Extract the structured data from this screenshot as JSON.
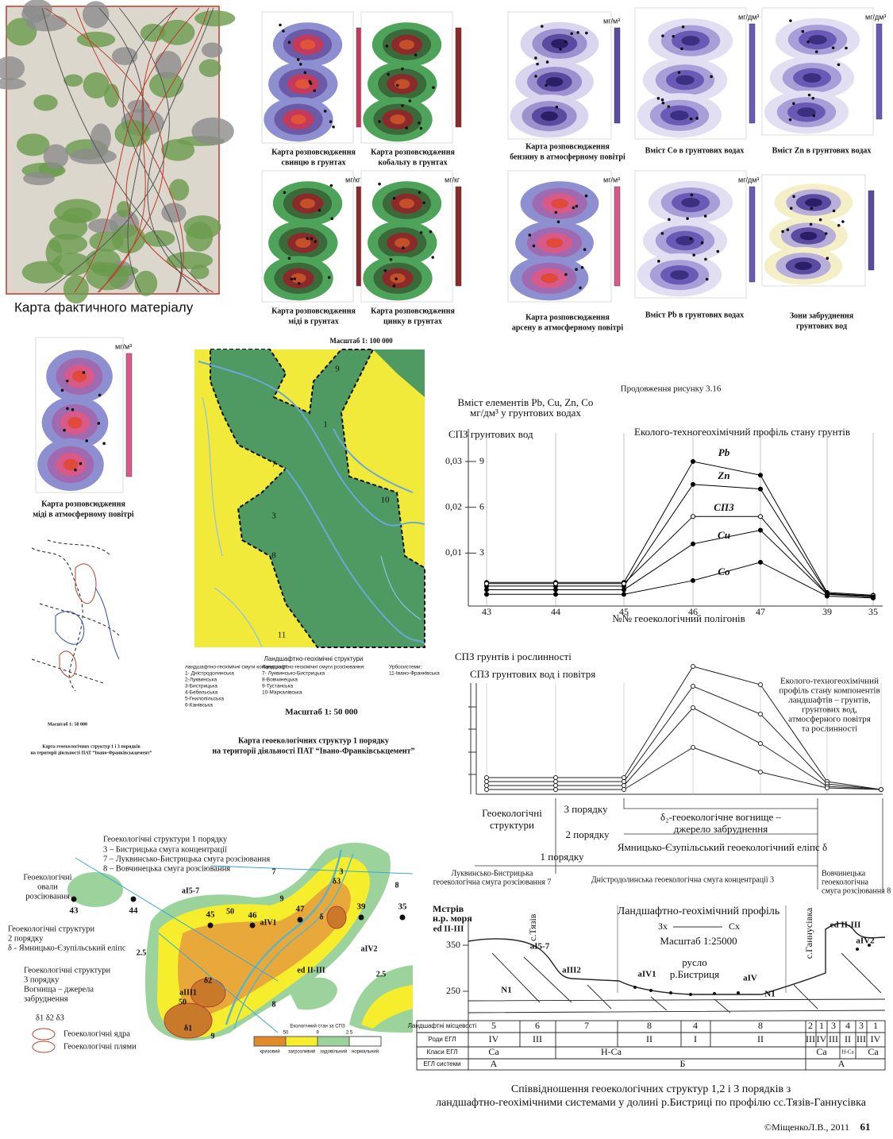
{
  "fact_map": {
    "caption": "Карта фактичного матеріалу"
  },
  "maps": [
    {
      "caption": [
        "Карта розповсюдження",
        "свинцю в грунтах"
      ]
    },
    {
      "caption": [
        "Карта розповсюдження",
        "кобальту в грунтах"
      ]
    },
    {
      "caption": [
        "Карта розповсюдження",
        "бензину в атмосферному повітрі"
      ],
      "unit": "мг/м³"
    },
    {
      "caption": [
        "Вміст Co в грунтових водах"
      ],
      "unit": "мг/дм³"
    },
    {
      "caption": [
        "Вміст Zn в грунтових водах"
      ],
      "unit": "мг/дм³"
    },
    {
      "caption": [
        "Карта розповсюдження",
        "міді в грунтах"
      ],
      "unit": "мг/кг"
    },
    {
      "caption": [
        "Карта розповсюдження",
        "цинку в грунтах"
      ],
      "unit": "мг/кг"
    },
    {
      "caption": [
        "Карта розповсюдження",
        "арсену в атмосферному повітрі"
      ],
      "unit": "мг/м³"
    },
    {
      "caption": [
        "Вміст Pb в грунтових водах"
      ],
      "unit": "мг/дм³"
    },
    {
      "caption": [
        "Зони забруднення",
        "грунтових вод"
      ]
    },
    {
      "caption": [
        "Карта розповсюдження",
        "міді в атмосферному повітрі"
      ],
      "unit": "мг/м³"
    }
  ],
  "geo_map": {
    "scale_top": "Масштаб 1: 100 000",
    "labels": [
      "9",
      "1",
      "7",
      "3",
      "10",
      "8",
      "11"
    ],
    "legend_title": "Ландшафтно-геохімічні структури",
    "legend": [
      [
        "ландшафтно-геохімічні смуги концентрації:",
        "1- Дністродолинська",
        "2-Луквинська",
        "3-Бистрицька",
        "4-Бебельська",
        "5-Гнилопільська",
        "6-Канівська"
      ],
      [
        "Ландшафтно-геохімічні смуги розсіювання:",
        "7- Луквинсько-Бистрицька",
        "8-Вовчинецька",
        "9-Тустанська",
        "10-Маркалівська"
      ],
      [
        "Урбосистеми:",
        "11-Івано-Франківська"
      ]
    ],
    "scale_bottom": "Масштаб 1: 50 000",
    "caption": [
      "Карта геоекологічних структур 1 порядку",
      "на території діяльності ПАТ “Івано-Франківськцемент”"
    ]
  },
  "sketch_map": {
    "scale": "Масштаб 1: 50 000",
    "caption": [
      "Карта геоекологічних структур 1 і 3 порядків",
      "на території діяльності ПАТ “Івано-Франківськцемент”"
    ]
  },
  "chart_data": {
    "type": "line",
    "title": "Продовження рисунку 3.16",
    "y_label": [
      "Вміст елементів Pb, Cu, Zn, Co",
      "мг/дм³ у грунтових водах"
    ],
    "y2_label": "СПЗ грунтових вод",
    "subtitle": "Еколого-техногеохімічний профіль стану грунтів",
    "x_label": "№№ геоекологічний полігонів",
    "categories": [
      "43",
      "44",
      "45",
      "46",
      "47",
      "39",
      "35"
    ],
    "ylim": [
      0,
      0.03
    ],
    "yticks": [
      {
        "value": 0.01,
        "label": "0,01"
      },
      {
        "value": 0.02,
        "label": "0,02"
      },
      {
        "value": 0.03,
        "label": "0,03"
      }
    ],
    "y2lim": [
      0,
      9
    ],
    "y2ticks": [
      3,
      6,
      9
    ],
    "grid": true,
    "series": [
      {
        "name": "Pb",
        "color": "#000000",
        "marker": "filled",
        "values": [
          0.0036,
          0.0036,
          0.0036,
          0.03,
          0.027,
          0.0014,
          0.0008
        ]
      },
      {
        "name": "Zn",
        "color": "#000000",
        "marker": "filled",
        "values": [
          0.0028,
          0.0028,
          0.0028,
          0.025,
          0.024,
          0.0012,
          0.0006
        ]
      },
      {
        "name": "СПЗ",
        "color": "#000000",
        "marker": "open",
        "axis": "y2",
        "values": [
          1.0,
          1.0,
          1.0,
          5.4,
          5.4,
          0.3,
          0.2
        ]
      },
      {
        "name": "Cu",
        "color": "#000000",
        "marker": "filled",
        "values": [
          0.002,
          0.002,
          0.002,
          0.012,
          0.015,
          0.001,
          0.0004
        ]
      },
      {
        "name": "Co",
        "color": "#000000",
        "marker": "filled",
        "values": [
          0.001,
          0.001,
          0.001,
          0.004,
          0.008,
          0.0006,
          0.0002
        ]
      }
    ]
  },
  "profile2": {
    "labels": [
      "СПЗ грунтів і рослинності",
      "СПЗ грунтових вод і повітря"
    ],
    "title": [
      "Еколого-техногеохімічний",
      "профіль стану компонентів",
      "ландшафтів – грунтів,",
      "грунтових вод,",
      "атмосферного повітря",
      "та рослинності"
    ]
  },
  "structures": {
    "label": [
      "Геоекологічні",
      "структури"
    ],
    "order3": "3 порядку",
    "order2": "2 порядку",
    "order1": "1 порядку",
    "focus": [
      "δ₂-геоекологічне вогнище –",
      "джерело забруднення"
    ],
    "ellipse": "Ямницько-Єзупільський геоекологічний еліпс δ",
    "band7": [
      "Луквинсько-Бистрицька",
      "геоекологічна смуга розсіювання 7"
    ],
    "band3": "Дністродолинська геоекологічна смуга концентрації 3",
    "band8": [
      "Вовчинецька",
      "геоекологічна",
      "смуга розсіювання 8"
    ]
  },
  "section": {
    "height_label": [
      "Мстрів",
      "н.р. моря"
    ],
    "ticks": [
      "350",
      "250"
    ],
    "title": "Ландшафтно-геохімічний профіль",
    "west": "Зх",
    "east": "Сх",
    "scale": "Масштаб 1:25000",
    "river": [
      "русло",
      "р.Бистриця"
    ],
    "villages": [
      "с.Тязів",
      "с.Ганнусівка"
    ],
    "labels": [
      "ed II-III",
      "aI5-7",
      "aIII2",
      "aIV1",
      "aIV",
      "N1",
      "N1",
      "ed II-III",
      "aIV2"
    ]
  },
  "table": {
    "row_heads": [
      "Ландшафтні місцевості",
      "Роди ЕГЛ",
      "Класи ЕГЛ",
      "ЕГЛ системи"
    ],
    "rows": [
      [
        "5",
        "6",
        "7",
        "8",
        "4",
        "8",
        "2",
        "1",
        "3",
        "4",
        "3",
        "1"
      ],
      [
        "IV",
        "III",
        "II",
        "I",
        "II",
        "III",
        "IV",
        "III",
        "II",
        "III",
        "IV"
      ],
      [
        "Ca",
        "H-Ca",
        "Ca",
        "H-Ca",
        "Ca"
      ],
      [
        "А",
        "Б",
        "А"
      ]
    ]
  },
  "diagram": {
    "texts": [
      "Геоекологічні структури 1 порядку",
      "3 – Бистрицька смуга концентрації",
      "7 – Луквинсько-Бистрицька смуга розсіювання",
      "8 – Вовчинецька смуга розсіювання",
      "Геоекологічні",
      "овали",
      "розсіювання",
      "Геоекологічні структури",
      "2 порядку",
      "δ - Ямницько-Єзупільський еліпс",
      "Геоекологічні структури",
      "3 порядку",
      "Вогнища – джерела",
      "забруднення",
      "δ1 δ2 δ3",
      "Геоекологічні ядра",
      "Геоекологічні плями"
    ],
    "points": [
      "43",
      "44",
      "45",
      "46",
      "47",
      "39",
      "35"
    ],
    "labels": [
      "aI5-7",
      "aIV1",
      "aIII1",
      "δ1",
      "δ2",
      "δ3",
      "δ",
      "ed II-III",
      "aIV2",
      "7",
      "3",
      "8",
      "8",
      "50",
      "50",
      "9",
      "9",
      "2.5",
      "2.5"
    ],
    "legend_title": "Екологічний стан за СПЗ",
    "legend": [
      "кризовий",
      "загрозливий",
      "задовільний",
      "нормальний"
    ],
    "legend_values": [
      "50",
      "9",
      "2.5"
    ]
  },
  "caption": [
    "Співвідношення геоекологічних структур 1,2 і 3 порядків з",
    "ландшафтно-геохімічними системами у долині р.Бистриці по профілю сс.Тязів-Ганнусівка"
  ],
  "copyright": "©МіщенкоЛ.В., 2011",
  "page": "61"
}
